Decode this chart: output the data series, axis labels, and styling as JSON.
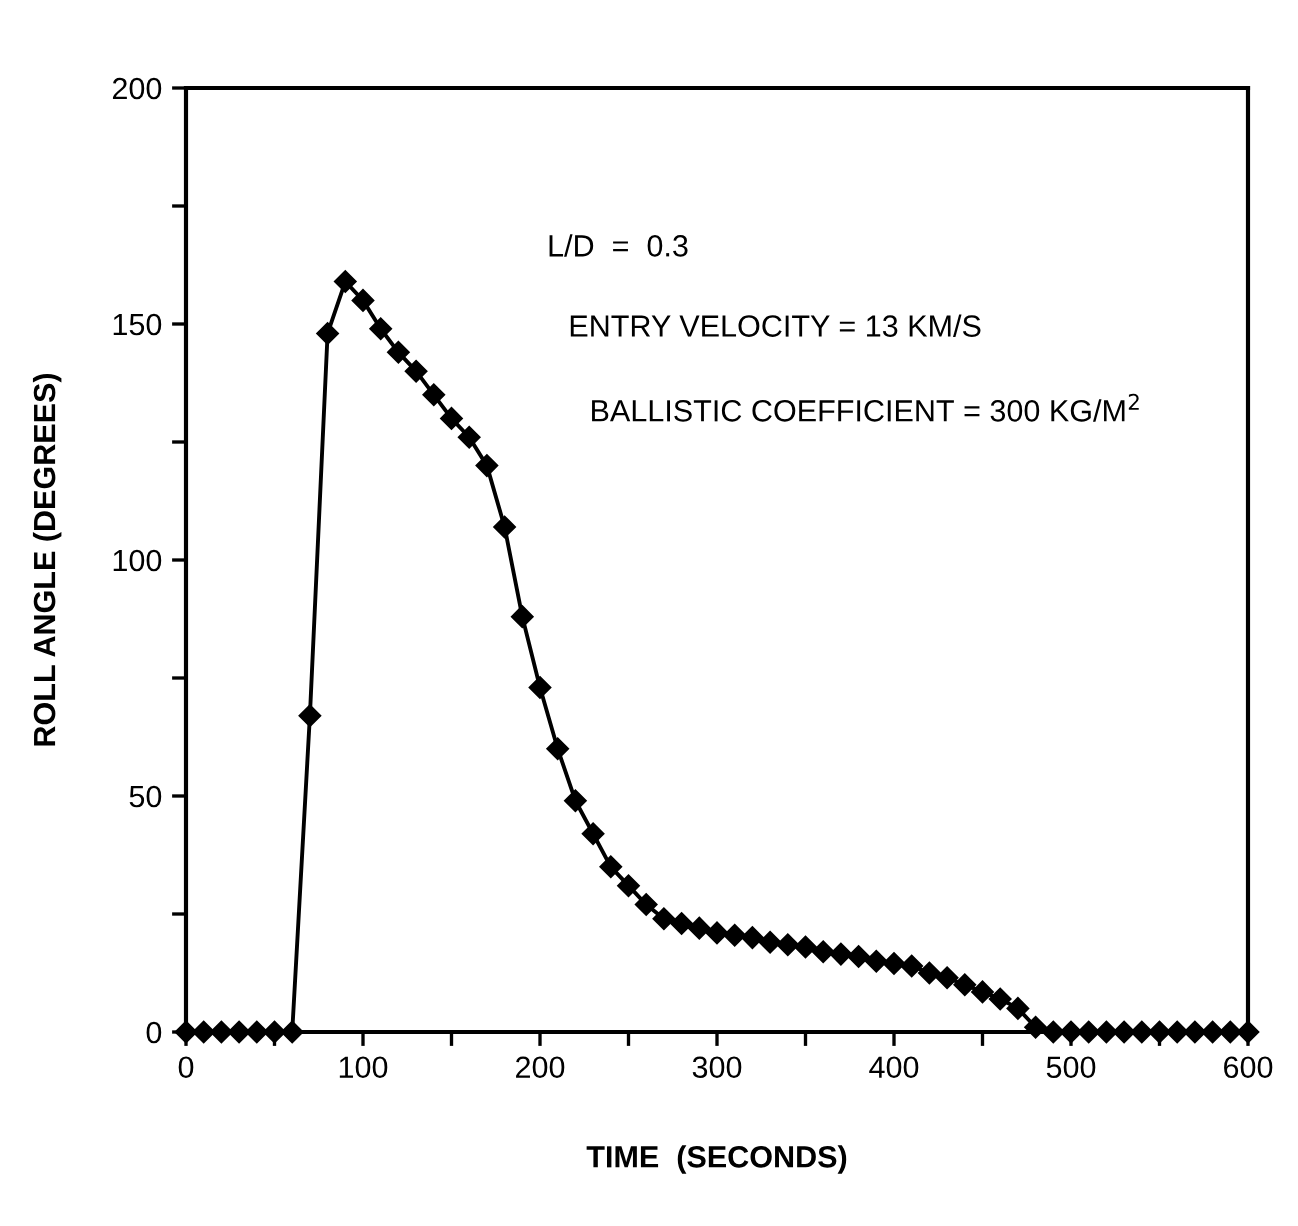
{
  "chart_data": {
    "type": "line",
    "xlabel": "TIME  (SECONDS)",
    "ylabel": "ROLL ANGLE (DEGREES)",
    "annotations": [
      "L/D  =  0.3",
      "ENTRY VELOCITY = 13 KM/S",
      "BALLISTIC COEFFICIENT = 300 KG/M$^{2}$"
    ],
    "xlim": [
      0,
      600
    ],
    "ylim": [
      0,
      200
    ],
    "xticks": [
      0,
      {
        "value": 50,
        "label": null
      },
      100,
      {
        "value": 150,
        "label": null
      },
      200,
      {
        "value": 250,
        "label": null
      },
      300,
      {
        "value": 350,
        "label": null
      },
      400,
      {
        "value": 450,
        "label": null
      },
      500,
      {
        "value": 550,
        "label": null
      },
      600
    ],
    "yticks": [
      0,
      {
        "value": 25,
        "label": null
      },
      50,
      {
        "value": 75,
        "label": null
      },
      100,
      {
        "value": 125,
        "label": null
      },
      150,
      {
        "value": 175,
        "label": null
      },
      200
    ],
    "grid": false,
    "marker": "diamond",
    "line_style": "solid",
    "x": [
      0,
      10,
      20,
      30,
      40,
      50,
      60,
      70,
      80,
      90,
      100,
      110,
      120,
      130,
      140,
      150,
      160,
      170,
      180,
      190,
      200,
      210,
      220,
      230,
      240,
      250,
      260,
      270,
      280,
      290,
      300,
      310,
      320,
      330,
      340,
      350,
      360,
      370,
      380,
      390,
      400,
      410,
      420,
      430,
      440,
      450,
      460,
      470,
      480,
      490,
      500,
      510,
      520,
      530,
      540,
      550,
      560,
      570,
      580,
      590,
      600
    ],
    "series": [
      {
        "color": "#000000",
        "values": [
          0,
          0,
          0,
          0,
          0,
          0,
          0,
          67,
          148,
          159,
          155,
          149,
          144,
          140,
          135,
          130,
          126,
          120,
          107,
          88,
          73,
          60,
          49,
          42,
          35,
          31,
          27,
          24,
          23,
          22,
          21,
          20.5,
          20,
          19,
          18.5,
          18,
          17,
          16.5,
          16,
          15,
          14.5,
          14,
          12.5,
          11.5,
          10,
          8.5,
          7,
          5,
          1,
          0,
          0,
          0,
          0,
          0,
          0,
          0,
          0,
          0,
          0,
          0,
          0
        ]
      }
    ]
  }
}
